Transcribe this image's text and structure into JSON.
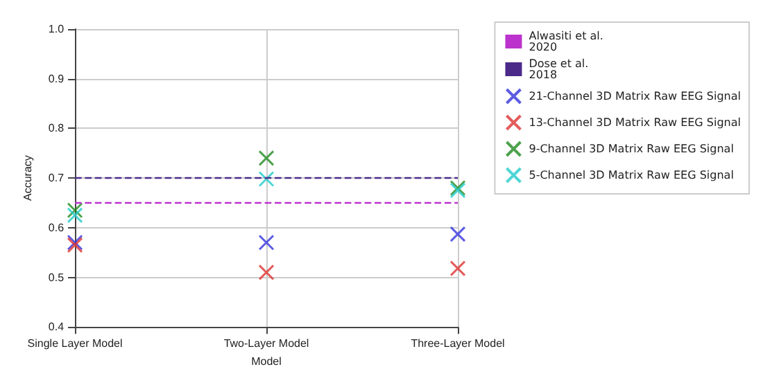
{
  "chart_data": {
    "type": "scatter",
    "xlabel": "Model",
    "ylabel": "Accuracy",
    "categories": [
      "Single Layer Model",
      "Two-Layer Model",
      "Three-Layer Model"
    ],
    "series": [
      {
        "name": "21-Channel 3D Matrix Raw EEG Signal",
        "color": "#3333dd",
        "values": [
          0.57,
          0.57,
          0.587
        ]
      },
      {
        "name": "13-Channel 3D Matrix Raw EEG Signal",
        "color": "#dd3333",
        "values": [
          0.565,
          0.51,
          0.518
        ]
      },
      {
        "name": "9-Channel 3D Matrix Raw EEG Signal",
        "color": "#228b22",
        "values": [
          0.635,
          0.74,
          0.68
        ]
      },
      {
        "name": "5-Channel 3D Matrix Raw EEG Signal",
        "color": "#22cccc",
        "values": [
          0.625,
          0.698,
          0.675
        ]
      }
    ],
    "ref_lines": [
      {
        "axis": "y",
        "value": 0.65,
        "label": "Alwasiti et al.\n2020",
        "color": "#bb33cc",
        "line_style": "dashed"
      },
      {
        "axis": "y",
        "value": 0.698,
        "label": "Dose et al.\n2018",
        "color": "#4b2a8a",
        "line_style": "dashed"
      }
    ],
    "ylim": [
      0.4,
      1.0
    ],
    "yticks": [
      0.4,
      0.5,
      0.6,
      0.7,
      0.8,
      0.9,
      {
        "value": 1,
        "label": "1.0"
      }
    ],
    "grid": true,
    "legend": "right",
    "marker": "cross"
  }
}
